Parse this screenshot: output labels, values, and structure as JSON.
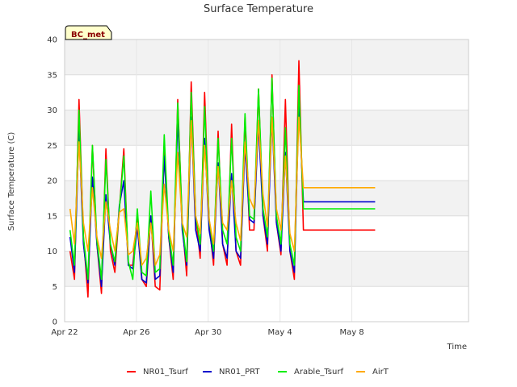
{
  "chart_data": {
    "type": "line",
    "title": "Surface Temperature",
    "xlabel": "Time",
    "ylabel": "Surface Temperature (C)",
    "badge": "BC_met",
    "ylim": [
      0,
      40
    ],
    "yticks": [
      0,
      5,
      10,
      15,
      20,
      25,
      30,
      35,
      40
    ],
    "xlim": [
      0,
      22.5
    ],
    "xticks": [
      {
        "x": 0,
        "label": "Apr 22"
      },
      {
        "x": 4,
        "label": "Apr 26"
      },
      {
        "x": 8,
        "label": "Apr 30"
      },
      {
        "x": 12,
        "label": "May 4"
      },
      {
        "x": 16,
        "label": "May 8"
      }
    ],
    "grid": true,
    "legend_position": "bottom",
    "x": [
      0.3,
      0.55,
      0.8,
      1.05,
      1.3,
      1.55,
      1.8,
      2.05,
      2.3,
      2.55,
      2.8,
      3.05,
      3.3,
      3.55,
      3.8,
      4.05,
      4.3,
      4.55,
      4.8,
      5.05,
      5.3,
      5.55,
      5.8,
      6.05,
      6.3,
      6.55,
      6.8,
      7.05,
      7.3,
      7.55,
      7.8,
      8.05,
      8.3,
      8.55,
      8.8,
      9.05,
      9.3,
      9.55,
      9.8,
      10.05,
      10.3,
      10.55,
      10.8,
      11.05,
      11.3,
      11.55,
      11.8,
      12.05,
      12.3,
      12.55,
      12.8,
      13.05,
      13.3,
      13.55,
      13.8,
      14.05,
      14.3,
      14.55,
      14.8,
      15.05,
      15.3,
      15.55,
      15.8,
      16.05,
      16.3,
      16.55,
      16.8,
      17.05,
      17.3
    ],
    "series": [
      {
        "name": "NR01_Tsurf",
        "color": "#ff0000",
        "values": [
          10.0,
          6.0,
          31.5,
          12.0,
          3.5,
          25.0,
          11.0,
          4.0,
          24.5,
          10.0,
          7.0,
          16.0,
          24.5,
          8.0,
          8.0,
          15.0,
          6.0,
          5.0,
          15.0,
          5.0,
          4.5,
          24.5,
          12.0,
          6.0,
          31.5,
          14.0,
          6.5,
          34.0,
          15.0,
          9.0,
          32.5,
          14.0,
          8.0,
          27.0,
          11.0,
          8.0,
          28.0,
          10.0,
          8.0,
          29.0,
          13.0,
          13.0,
          33.0,
          15.0,
          10.0,
          35.0,
          14.0,
          9.5,
          31.5,
          10.0,
          6.0,
          37.0,
          13.0,
          13.0,
          13.0,
          13.0,
          13.0,
          13.0,
          13.0,
          13.0,
          13.0,
          13.0,
          13.0,
          13.0,
          13.0,
          13.0,
          13.0,
          13.0,
          13.0
        ]
      },
      {
        "name": "NR01_PRT",
        "color": "#0000cc",
        "values": [
          12.0,
          7.0,
          27.0,
          11.0,
          5.5,
          20.5,
          11.0,
          5.0,
          18.0,
          11.0,
          8.0,
          16.5,
          20.0,
          8.0,
          7.5,
          13.5,
          6.0,
          5.5,
          15.0,
          6.0,
          6.5,
          23.5,
          12.0,
          7.0,
          29.0,
          13.0,
          8.0,
          29.0,
          13.0,
          10.0,
          26.0,
          13.0,
          9.0,
          22.5,
          11.0,
          9.0,
          21.0,
          10.0,
          9.0,
          25.0,
          14.5,
          14.0,
          28.0,
          15.0,
          11.0,
          29.0,
          14.0,
          10.0,
          24.0,
          10.0,
          7.0,
          31.0,
          17.0,
          17.0,
          17.0,
          17.0,
          17.0,
          17.0,
          17.0,
          17.0,
          17.0,
          17.0,
          17.0,
          17.0,
          17.0,
          17.0,
          17.0,
          17.0,
          17.0
        ]
      },
      {
        "name": "Arable_Tsurf",
        "color": "#00ee00",
        "values": [
          13.0,
          8.0,
          30.0,
          12.0,
          6.0,
          25.0,
          11.5,
          6.0,
          23.0,
          11.0,
          8.5,
          16.0,
          23.5,
          8.5,
          6.0,
          16.0,
          7.0,
          6.5,
          18.5,
          7.0,
          7.5,
          26.5,
          12.5,
          8.0,
          31.0,
          14.0,
          8.5,
          32.5,
          15.0,
          11.0,
          30.5,
          14.5,
          10.0,
          26.0,
          13.0,
          11.0,
          26.0,
          12.0,
          10.0,
          29.5,
          15.0,
          14.5,
          33.0,
          16.0,
          12.0,
          34.5,
          15.0,
          11.0,
          27.5,
          11.0,
          8.0,
          33.5,
          16.0,
          16.0,
          16.0,
          16.0,
          16.0,
          16.0,
          16.0,
          16.0,
          16.0,
          16.0,
          16.0,
          16.0,
          16.0,
          16.0,
          16.0,
          16.0,
          16.0
        ]
      },
      {
        "name": "AirT",
        "color": "#ffaa00",
        "values": [
          16.0,
          11.0,
          25.5,
          14.0,
          10.0,
          19.0,
          12.0,
          9.0,
          17.0,
          13.0,
          10.0,
          15.5,
          16.0,
          9.5,
          10.0,
          14.0,
          8.0,
          9.0,
          14.0,
          8.0,
          9.5,
          19.5,
          13.0,
          10.0,
          24.0,
          14.0,
          12.0,
          28.5,
          15.0,
          12.5,
          25.0,
          14.5,
          11.0,
          22.0,
          14.0,
          13.0,
          20.0,
          14.0,
          11.5,
          25.5,
          17.5,
          16.0,
          28.5,
          18.0,
          13.5,
          29.0,
          16.0,
          13.0,
          23.5,
          12.5,
          10.0,
          29.0,
          19.0,
          19.0,
          19.0,
          19.0,
          19.0,
          19.0,
          19.0,
          19.0,
          19.0,
          19.0,
          19.0,
          19.0,
          19.0,
          19.0,
          19.0,
          19.0,
          19.0
        ]
      }
    ]
  }
}
